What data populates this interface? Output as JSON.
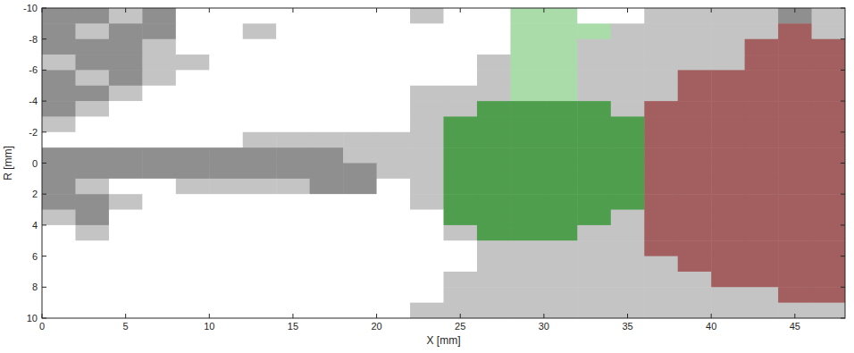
{
  "chart_data": {
    "type": "heatmap",
    "xlabel": "X [mm]",
    "ylabel": "R [mm]",
    "xlim": [
      0,
      48
    ],
    "ylim": [
      10,
      -10
    ],
    "xticks": [
      0,
      5,
      10,
      15,
      20,
      25,
      30,
      35,
      40,
      45
    ],
    "yticks": [
      -10,
      -8,
      -6,
      -4,
      -2,
      0,
      2,
      4,
      6,
      8,
      10
    ],
    "x_edges": [
      0,
      2,
      4,
      6,
      8,
      10,
      12,
      14,
      16,
      18,
      20,
      22,
      24,
      26,
      28,
      30,
      32,
      34,
      36,
      38,
      40,
      42,
      44,
      46,
      48
    ],
    "y_edges": [
      -10,
      -9,
      -8,
      -7,
      -6,
      -5,
      -4,
      -3,
      -2,
      -1,
      0,
      1,
      2,
      3,
      4,
      5,
      6,
      7,
      8,
      9,
      10
    ],
    "colors": [
      "#ffffff",
      "#c4c4c4",
      "#8f8f8f",
      "#4e9e4e",
      "#a35f5f",
      "#a9dca9"
    ],
    "cells": [
      [
        2,
        2,
        1,
        2,
        0,
        0,
        0,
        0,
        0,
        0,
        0,
        1,
        0,
        0,
        5,
        5,
        0,
        0,
        1,
        1,
        1,
        1,
        2,
        1
      ],
      [
        2,
        1,
        2,
        2,
        0,
        0,
        1,
        0,
        0,
        0,
        0,
        0,
        0,
        0,
        5,
        5,
        5,
        1,
        1,
        1,
        1,
        1,
        4,
        1
      ],
      [
        2,
        2,
        2,
        1,
        0,
        0,
        0,
        0,
        0,
        0,
        0,
        0,
        0,
        0,
        5,
        5,
        1,
        1,
        1,
        1,
        1,
        4,
        4,
        4
      ],
      [
        1,
        2,
        2,
        1,
        1,
        0,
        0,
        0,
        0,
        0,
        0,
        0,
        0,
        1,
        5,
        5,
        1,
        1,
        1,
        1,
        1,
        4,
        4,
        4
      ],
      [
        2,
        1,
        2,
        1,
        0,
        0,
        0,
        0,
        0,
        0,
        0,
        0,
        0,
        1,
        5,
        5,
        1,
        1,
        1,
        4,
        4,
        4,
        4,
        4
      ],
      [
        2,
        2,
        1,
        0,
        0,
        0,
        0,
        0,
        0,
        0,
        0,
        1,
        1,
        1,
        5,
        5,
        1,
        1,
        1,
        4,
        4,
        4,
        4,
        4
      ],
      [
        2,
        1,
        0,
        0,
        0,
        0,
        0,
        0,
        0,
        0,
        0,
        1,
        1,
        3,
        3,
        3,
        3,
        1,
        4,
        4,
        4,
        4,
        4,
        4
      ],
      [
        1,
        0,
        0,
        0,
        0,
        0,
        0,
        0,
        0,
        0,
        0,
        1,
        3,
        3,
        3,
        3,
        3,
        3,
        4,
        4,
        4,
        4,
        4,
        4
      ],
      [
        0,
        0,
        0,
        0,
        0,
        0,
        1,
        1,
        1,
        1,
        1,
        1,
        3,
        3,
        3,
        3,
        3,
        3,
        4,
        4,
        4,
        4,
        4,
        4
      ],
      [
        2,
        2,
        2,
        2,
        2,
        2,
        2,
        2,
        2,
        1,
        1,
        1,
        3,
        3,
        3,
        3,
        3,
        3,
        4,
        4,
        4,
        4,
        4,
        4
      ],
      [
        2,
        2,
        2,
        2,
        2,
        2,
        2,
        2,
        2,
        2,
        1,
        1,
        3,
        3,
        3,
        3,
        3,
        3,
        4,
        4,
        4,
        4,
        4,
        4
      ],
      [
        2,
        1,
        0,
        0,
        1,
        1,
        1,
        1,
        2,
        2,
        0,
        1,
        3,
        3,
        3,
        3,
        3,
        3,
        4,
        4,
        4,
        4,
        4,
        4
      ],
      [
        2,
        2,
        1,
        0,
        0,
        0,
        0,
        0,
        0,
        0,
        0,
        1,
        3,
        3,
        3,
        3,
        3,
        3,
        4,
        4,
        4,
        4,
        4,
        4
      ],
      [
        1,
        2,
        0,
        0,
        0,
        0,
        0,
        0,
        0,
        0,
        0,
        0,
        3,
        3,
        3,
        3,
        3,
        1,
        4,
        4,
        4,
        4,
        4,
        4
      ],
      [
        0,
        1,
        0,
        0,
        0,
        0,
        0,
        0,
        0,
        0,
        0,
        0,
        1,
        3,
        3,
        3,
        1,
        1,
        4,
        4,
        4,
        4,
        4,
        4
      ],
      [
        0,
        0,
        0,
        0,
        0,
        0,
        0,
        0,
        0,
        0,
        0,
        0,
        0,
        1,
        1,
        1,
        1,
        1,
        4,
        4,
        4,
        4,
        4,
        4
      ],
      [
        0,
        0,
        0,
        0,
        0,
        0,
        0,
        0,
        0,
        0,
        0,
        0,
        0,
        1,
        1,
        1,
        1,
        1,
        1,
        4,
        4,
        4,
        4,
        4
      ],
      [
        0,
        0,
        0,
        0,
        0,
        0,
        0,
        0,
        0,
        0,
        0,
        0,
        1,
        1,
        1,
        1,
        1,
        1,
        1,
        1,
        4,
        4,
        4,
        4
      ],
      [
        0,
        0,
        0,
        0,
        0,
        0,
        0,
        0,
        0,
        0,
        0,
        0,
        1,
        1,
        1,
        1,
        1,
        1,
        1,
        1,
        1,
        1,
        4,
        4
      ],
      [
        0,
        0,
        0,
        0,
        0,
        0,
        0,
        0,
        0,
        0,
        0,
        1,
        1,
        1,
        1,
        1,
        1,
        1,
        1,
        1,
        1,
        1,
        1,
        1
      ]
    ]
  }
}
